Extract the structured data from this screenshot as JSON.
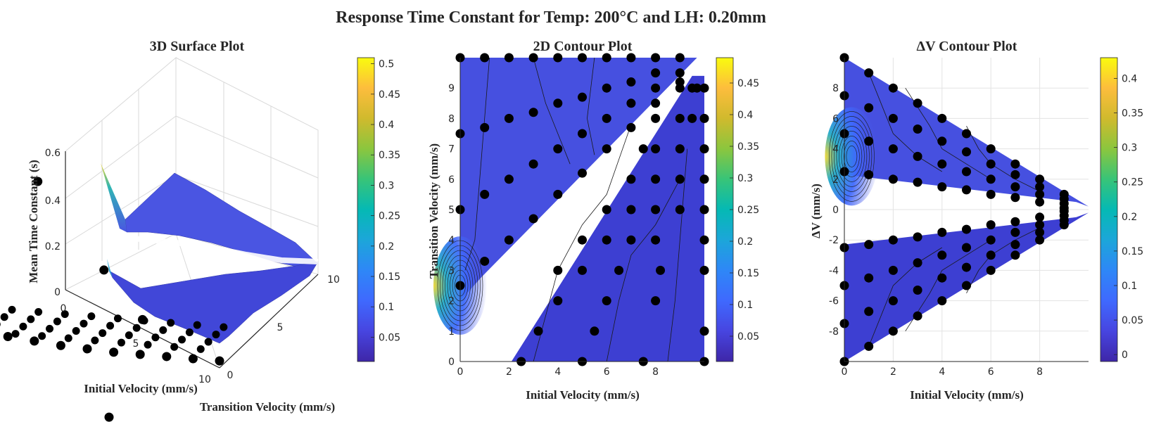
{
  "figure": {
    "title": "Response Time Constant for Temp: 200°C and LH: 0.20mm"
  },
  "colors": {
    "surface_low": "#3e3fd6",
    "surface_mid": "#4a55e2",
    "contour_line": "#1a1a1a",
    "marker": "#000000",
    "colormap": [
      "#3e26a8",
      "#4745e0",
      "#3f69fe",
      "#2e87f7",
      "#1ca6d9",
      "#05b9b4",
      "#38c478",
      "#8bc63e",
      "#d0ba2d",
      "#fdbd3d",
      "#f5e225",
      "#f9fb0e"
    ]
  },
  "chart_data": [
    {
      "type": "surface",
      "title": "3D Surface Plot",
      "xlabel": "Initial Velocity (mm/s)",
      "ylabel": "Transition Velocity (mm/s)",
      "zlabel": "Mean Time Constant (s)",
      "xlim": [
        0,
        10
      ],
      "ylim": [
        0,
        10
      ],
      "zlim": [
        0,
        0.6
      ],
      "x_ticks": [
        "0",
        "5",
        "10"
      ],
      "y_ticks": [
        "0",
        "5",
        "10"
      ],
      "z_ticks": [
        "0",
        "0.2",
        "0.4",
        "0.6"
      ],
      "colorbar": {
        "ticks": [
          "0.05",
          "0.1",
          "0.15",
          "0.2",
          "0.25",
          "0.3",
          "0.35",
          "0.4",
          "0.45",
          "0.5"
        ],
        "range": [
          0.01,
          0.51
        ]
      },
      "upper_branch": [
        {
          "x": 0,
          "y": 2.5,
          "z": 0.53
        },
        {
          "x": 0,
          "y": 10,
          "z": 0.11
        },
        {
          "x": 1,
          "y": 9,
          "z": 0.08
        },
        {
          "x": 2,
          "y": 8,
          "z": 0.06
        },
        {
          "x": 3,
          "y": 7,
          "z": 0.05
        },
        {
          "x": 4,
          "y": 6,
          "z": 0.04
        },
        {
          "x": 5,
          "y": 5,
          "z": 0.035
        },
        {
          "x": 6,
          "y": 4,
          "z": 0.03
        },
        {
          "x": 7,
          "y": 3,
          "z": 0.03
        },
        {
          "x": 8,
          "y": 2,
          "z": 0.03
        },
        {
          "x": 9,
          "y": 1,
          "z": 0.03
        }
      ],
      "lower_branch": [
        {
          "x": 2.5,
          "y": 0,
          "z": 0.17
        },
        {
          "x": 5,
          "y": 0,
          "z": 0.04
        },
        {
          "x": 10,
          "y": 0,
          "z": 0.03
        },
        {
          "x": 10,
          "y": 10,
          "z": 0.03
        }
      ]
    },
    {
      "type": "contour",
      "title": "2D Contour Plot",
      "xlabel": "Initial Velocity (mm/s)",
      "ylabel": "Transition Velocity (mm/s)",
      "xlim": [
        0,
        10
      ],
      "ylim": [
        0,
        10
      ],
      "x_ticks": [
        0,
        2,
        4,
        6,
        8
      ],
      "y_ticks": [
        0,
        1,
        2,
        3,
        4,
        5,
        6,
        7,
        8,
        9
      ],
      "colorbar": {
        "ticks": [
          "0.05",
          "0.1",
          "0.15",
          "0.2",
          "0.25",
          "0.3",
          "0.35",
          "0.4",
          "0.45"
        ],
        "range": [
          0.01,
          0.49
        ]
      },
      "upper_region": [
        [
          0,
          2
        ],
        [
          0,
          10
        ],
        [
          9.7,
          10
        ],
        [
          0.9,
          2.8
        ]
      ],
      "lower_region": [
        [
          2.1,
          0
        ],
        [
          10,
          0
        ],
        [
          10,
          9.4
        ],
        [
          9.5,
          9.4
        ]
      ],
      "hot_spot": {
        "x": 0,
        "y": 2.5
      },
      "points": [
        [
          0,
          10
        ],
        [
          1,
          10
        ],
        [
          2,
          10
        ],
        [
          3,
          10
        ],
        [
          4,
          10
        ],
        [
          5,
          10
        ],
        [
          6,
          10
        ],
        [
          7,
          10
        ],
        [
          8,
          10
        ],
        [
          9,
          10
        ],
        [
          0,
          7.5
        ],
        [
          0,
          5
        ],
        [
          0,
          2.5
        ],
        [
          1,
          7.7
        ],
        [
          1,
          5.5
        ],
        [
          1,
          3.3
        ],
        [
          2,
          8
        ],
        [
          2,
          6
        ],
        [
          2,
          4
        ],
        [
          3,
          8.2
        ],
        [
          3,
          6.5
        ],
        [
          3,
          4.7
        ],
        [
          4,
          8.5
        ],
        [
          4,
          7
        ],
        [
          4,
          5.5
        ],
        [
          5,
          8.7
        ],
        [
          5,
          7.5
        ],
        [
          5,
          6.2
        ],
        [
          6,
          9
        ],
        [
          6,
          8
        ],
        [
          6,
          7
        ],
        [
          7,
          9.2
        ],
        [
          7,
          8.5
        ],
        [
          7,
          7.7
        ],
        [
          8,
          9.5
        ],
        [
          8,
          9
        ],
        [
          8,
          8.5
        ],
        [
          9,
          9.5
        ],
        [
          9,
          9.2
        ],
        [
          9,
          9
        ],
        [
          9.5,
          9
        ],
        [
          9.7,
          9
        ],
        [
          10,
          9
        ],
        [
          10,
          8
        ],
        [
          9.5,
          8
        ],
        [
          9,
          8
        ],
        [
          8,
          8
        ],
        [
          10,
          7
        ],
        [
          9,
          7
        ],
        [
          8,
          7
        ],
        [
          7.5,
          7
        ],
        [
          10,
          6
        ],
        [
          9,
          6
        ],
        [
          8,
          6
        ],
        [
          7,
          6
        ],
        [
          6,
          5
        ],
        [
          7,
          5
        ],
        [
          8,
          5
        ],
        [
          9,
          5
        ],
        [
          10,
          5
        ],
        [
          5,
          4
        ],
        [
          6,
          4
        ],
        [
          7,
          4
        ],
        [
          8,
          4
        ],
        [
          10,
          4
        ],
        [
          4,
          3
        ],
        [
          5,
          3
        ],
        [
          6.5,
          3
        ],
        [
          8.2,
          3
        ],
        [
          10,
          3
        ],
        [
          4,
          2
        ],
        [
          6,
          2
        ],
        [
          8,
          2
        ],
        [
          3.2,
          1
        ],
        [
          5.5,
          1
        ],
        [
          10,
          1
        ],
        [
          2.5,
          0
        ],
        [
          5,
          0
        ],
        [
          7.5,
          0
        ],
        [
          10,
          0
        ]
      ]
    },
    {
      "type": "contour",
      "title": "ΔV Contour Plot",
      "xlabel": "Initial Velocity (mm/s)",
      "ylabel": "ΔV (mm/s)",
      "xlim": [
        0,
        10
      ],
      "ylim": [
        -10,
        10
      ],
      "x_ticks": [
        0,
        2,
        4,
        6,
        8
      ],
      "y_ticks": [
        -8,
        -6,
        -4,
        -2,
        0,
        2,
        4,
        6,
        8
      ],
      "colorbar": {
        "ticks": [
          "0",
          "0.05",
          "0.1",
          "0.15",
          "0.2",
          "0.25",
          "0.3",
          "0.35",
          "0.4"
        ],
        "range": [
          -0.01,
          0.43
        ]
      },
      "upper_region": [
        [
          0,
          2.3
        ],
        [
          0,
          10
        ],
        [
          10,
          0.2
        ],
        [
          9.5,
          0.5
        ]
      ],
      "lower_region": [
        [
          0,
          -2.3
        ],
        [
          0,
          -10
        ],
        [
          10,
          -0.2
        ],
        [
          9.5,
          -0.5
        ]
      ],
      "hot_spot": {
        "x": 0.3,
        "y": 3.5
      },
      "points": [
        [
          0,
          10
        ],
        [
          0,
          7.5
        ],
        [
          0,
          5
        ],
        [
          0,
          2.5
        ],
        [
          1,
          9
        ],
        [
          1,
          6.7
        ],
        [
          1,
          4.5
        ],
        [
          1,
          2.3
        ],
        [
          2,
          8
        ],
        [
          2,
          6
        ],
        [
          2,
          4
        ],
        [
          2,
          2
        ],
        [
          3,
          7
        ],
        [
          3,
          5.3
        ],
        [
          3,
          3.5
        ],
        [
          3,
          1.8
        ],
        [
          4,
          6
        ],
        [
          4,
          4.5
        ],
        [
          4,
          3
        ],
        [
          4,
          1.5
        ],
        [
          5,
          5
        ],
        [
          5,
          3.8
        ],
        [
          5,
          2.5
        ],
        [
          5,
          1.3
        ],
        [
          6,
          4
        ],
        [
          6,
          3
        ],
        [
          6,
          2
        ],
        [
          6,
          1
        ],
        [
          7,
          3
        ],
        [
          7,
          2.3
        ],
        [
          7,
          1.5
        ],
        [
          7,
          0.8
        ],
        [
          8,
          2
        ],
        [
          8,
          1.5
        ],
        [
          8,
          1
        ],
        [
          8,
          0.5
        ],
        [
          9,
          1
        ],
        [
          9,
          0.7
        ],
        [
          9,
          0.4
        ],
        [
          9,
          0.1
        ],
        [
          0,
          -10
        ],
        [
          0,
          -7.5
        ],
        [
          0,
          -5
        ],
        [
          0,
          -2.5
        ],
        [
          1,
          -9
        ],
        [
          1,
          -6.7
        ],
        [
          1,
          -4.5
        ],
        [
          1,
          -2.3
        ],
        [
          2,
          -8
        ],
        [
          2,
          -6
        ],
        [
          2,
          -4
        ],
        [
          2,
          -2
        ],
        [
          3,
          -7
        ],
        [
          3,
          -5.3
        ],
        [
          3,
          -3.5
        ],
        [
          3,
          -1.8
        ],
        [
          4,
          -6
        ],
        [
          4,
          -4.5
        ],
        [
          4,
          -3
        ],
        [
          4,
          -1.5
        ],
        [
          5,
          -5
        ],
        [
          5,
          -3.8
        ],
        [
          5,
          -2.5
        ],
        [
          5,
          -1.3
        ],
        [
          6,
          -4
        ],
        [
          6,
          -3
        ],
        [
          6,
          -2
        ],
        [
          6,
          -1
        ],
        [
          7,
          -3
        ],
        [
          7,
          -2.3
        ],
        [
          7,
          -1.5
        ],
        [
          7,
          -0.8
        ],
        [
          8,
          -2
        ],
        [
          8,
          -1.5
        ],
        [
          8,
          -1
        ],
        [
          8,
          -0.5
        ],
        [
          9,
          -1
        ],
        [
          9,
          -0.7
        ],
        [
          9,
          -0.4
        ],
        [
          9,
          -0.1
        ]
      ]
    }
  ]
}
